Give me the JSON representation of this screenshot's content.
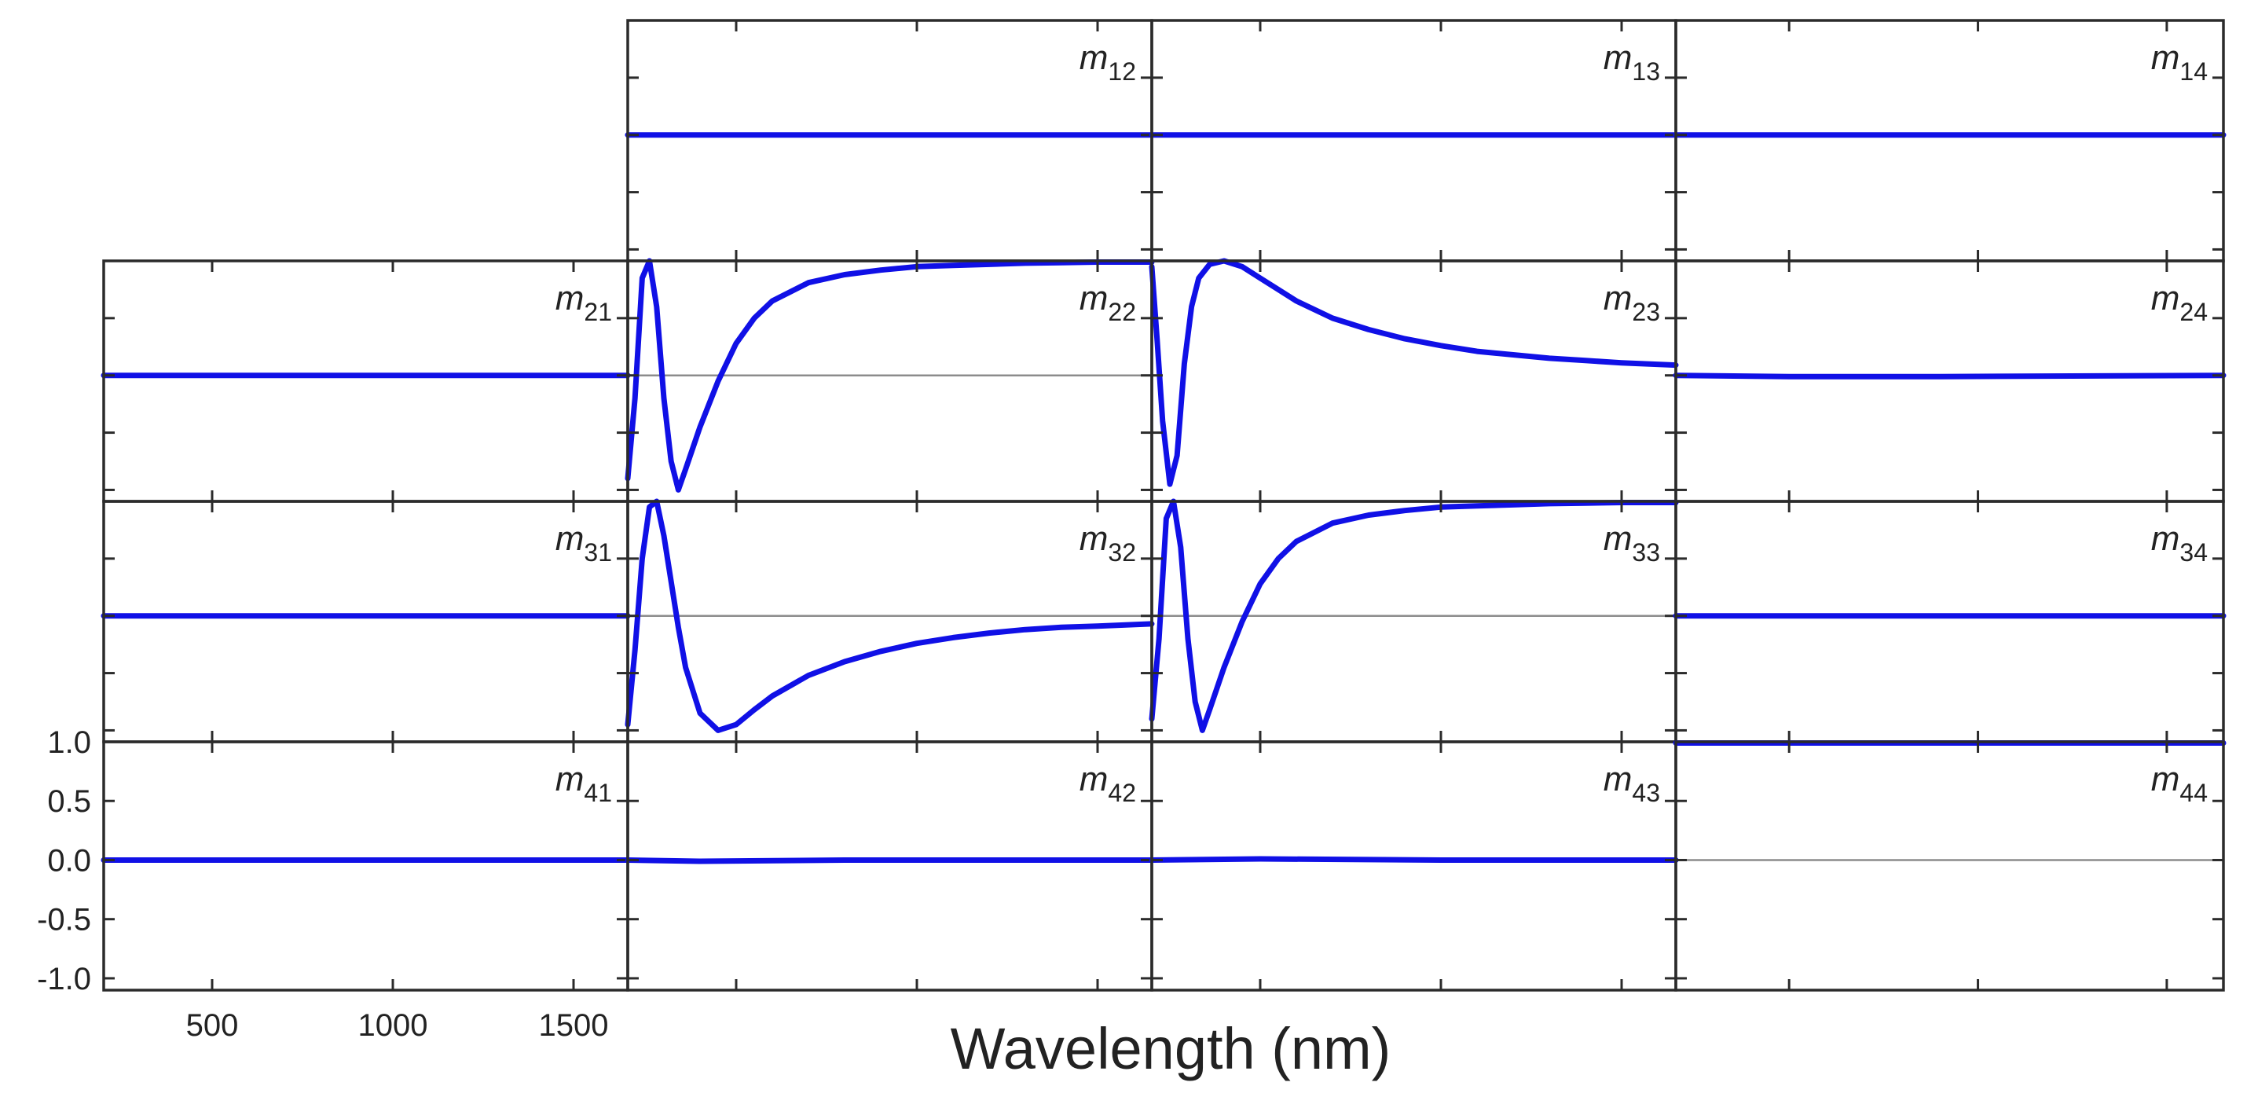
{
  "chart_data": {
    "type": "line",
    "title": "",
    "xlabel": "Wavelength (nm)",
    "ylabel": "",
    "xlim": [
      200,
      1650
    ],
    "ylim": [
      -1.1,
      1.0
    ],
    "xticks": [
      500,
      1000,
      1500
    ],
    "x_tick_labels": [
      "500",
      "1000",
      "1500"
    ],
    "yticks": [
      1.0,
      0.5,
      0.0,
      -0.5,
      -1.0
    ],
    "y_tick_labels": [
      "1.0",
      "0.5",
      "0.0",
      "-0.5",
      "-1.0"
    ],
    "grid": false,
    "line_color": "#1010e6",
    "zero_line_color": "#8c8c8c",
    "panels": [
      {
        "id": "m12",
        "letter": "m",
        "sub": "12",
        "row": 1,
        "col": 2,
        "x": [
          200,
          1650
        ],
        "y": [
          0.0,
          0.0
        ]
      },
      {
        "id": "m13",
        "letter": "m",
        "sub": "13",
        "row": 1,
        "col": 3,
        "x": [
          200,
          1650
        ],
        "y": [
          0.0,
          0.0
        ]
      },
      {
        "id": "m14",
        "letter": "m",
        "sub": "14",
        "row": 1,
        "col": 4,
        "x": [
          200,
          1650
        ],
        "y": [
          0.0,
          0.0
        ]
      },
      {
        "id": "m21",
        "letter": "m",
        "sub": "21",
        "row": 2,
        "col": 1,
        "x": [
          200,
          1650
        ],
        "y": [
          0.0,
          0.0
        ]
      },
      {
        "id": "m22",
        "letter": "m",
        "sub": "22",
        "row": 2,
        "col": 2,
        "zero_line": true,
        "x": [
          200,
          220,
          240,
          260,
          280,
          300,
          320,
          340,
          360,
          400,
          450,
          500,
          550,
          600,
          700,
          800,
          900,
          1000,
          1100,
          1200,
          1300,
          1400,
          1500,
          1650
        ],
        "y": [
          -0.9,
          -0.2,
          0.85,
          1.0,
          0.6,
          -0.2,
          -0.75,
          -1.0,
          -0.82,
          -0.45,
          -0.05,
          0.28,
          0.5,
          0.65,
          0.81,
          0.88,
          0.92,
          0.95,
          0.96,
          0.97,
          0.98,
          0.985,
          0.99,
          0.99
        ]
      },
      {
        "id": "m23",
        "letter": "m",
        "sub": "23",
        "row": 2,
        "col": 3,
        "zero_line": false,
        "x": [
          200,
          215,
          230,
          250,
          270,
          290,
          310,
          330,
          360,
          400,
          450,
          500,
          550,
          600,
          700,
          800,
          900,
          1000,
          1100,
          1200,
          1300,
          1400,
          1500,
          1650
        ],
        "y": [
          0.95,
          0.3,
          -0.4,
          -0.95,
          -0.7,
          0.1,
          0.6,
          0.85,
          0.97,
          1.0,
          0.95,
          0.85,
          0.75,
          0.65,
          0.5,
          0.4,
          0.32,
          0.26,
          0.21,
          0.18,
          0.15,
          0.13,
          0.11,
          0.09
        ]
      },
      {
        "id": "m24",
        "letter": "m",
        "sub": "24",
        "row": 2,
        "col": 4,
        "x": [
          200,
          500,
          900,
          1650
        ],
        "y": [
          0.0,
          -0.01,
          -0.01,
          0.0
        ]
      },
      {
        "id": "m31",
        "letter": "m",
        "sub": "31",
        "row": 3,
        "col": 1,
        "x": [
          200,
          1650
        ],
        "y": [
          0.0,
          0.0
        ]
      },
      {
        "id": "m32",
        "letter": "m",
        "sub": "32",
        "row": 3,
        "col": 2,
        "zero_line": true,
        "x": [
          200,
          220,
          240,
          260,
          280,
          300,
          320,
          340,
          360,
          400,
          450,
          500,
          550,
          600,
          700,
          800,
          900,
          1000,
          1100,
          1200,
          1300,
          1400,
          1500,
          1650
        ],
        "y": [
          -0.95,
          -0.3,
          0.5,
          0.95,
          1.0,
          0.7,
          0.3,
          -0.1,
          -0.45,
          -0.85,
          -1.0,
          -0.95,
          -0.82,
          -0.7,
          -0.52,
          -0.4,
          -0.31,
          -0.24,
          -0.19,
          -0.15,
          -0.12,
          -0.1,
          -0.09,
          -0.07
        ]
      },
      {
        "id": "m33",
        "letter": "m",
        "sub": "33",
        "row": 3,
        "col": 3,
        "zero_line": true,
        "x": [
          200,
          220,
          240,
          260,
          280,
          300,
          320,
          340,
          360,
          400,
          450,
          500,
          550,
          600,
          700,
          800,
          900,
          1000,
          1100,
          1200,
          1300,
          1400,
          1500,
          1650
        ],
        "y": [
          -0.9,
          -0.2,
          0.85,
          1.0,
          0.6,
          -0.2,
          -0.75,
          -1.0,
          -0.82,
          -0.45,
          -0.05,
          0.28,
          0.5,
          0.65,
          0.81,
          0.88,
          0.92,
          0.95,
          0.96,
          0.97,
          0.98,
          0.985,
          0.99,
          0.99
        ]
      },
      {
        "id": "m34",
        "letter": "m",
        "sub": "34",
        "row": 3,
        "col": 4,
        "x": [
          200,
          1650
        ],
        "y": [
          0.0,
          0.0
        ]
      },
      {
        "id": "m41",
        "letter": "m",
        "sub": "41",
        "row": 4,
        "col": 1,
        "x": [
          200,
          1650
        ],
        "y": [
          0.0,
          0.0
        ]
      },
      {
        "id": "m42",
        "letter": "m",
        "sub": "42",
        "row": 4,
        "col": 2,
        "x": [
          200,
          400,
          800,
          1650
        ],
        "y": [
          0.0,
          -0.01,
          0.0,
          0.0
        ]
      },
      {
        "id": "m43",
        "letter": "m",
        "sub": "43",
        "row": 4,
        "col": 3,
        "x": [
          200,
          500,
          1000,
          1650
        ],
        "y": [
          0.0,
          0.01,
          0.0,
          0.0
        ]
      },
      {
        "id": "m44",
        "letter": "m",
        "sub": "44",
        "row": 4,
        "col": 4,
        "zero_line": true,
        "x": [
          200,
          1650
        ],
        "y": [
          0.99,
          0.99
        ]
      }
    ]
  }
}
